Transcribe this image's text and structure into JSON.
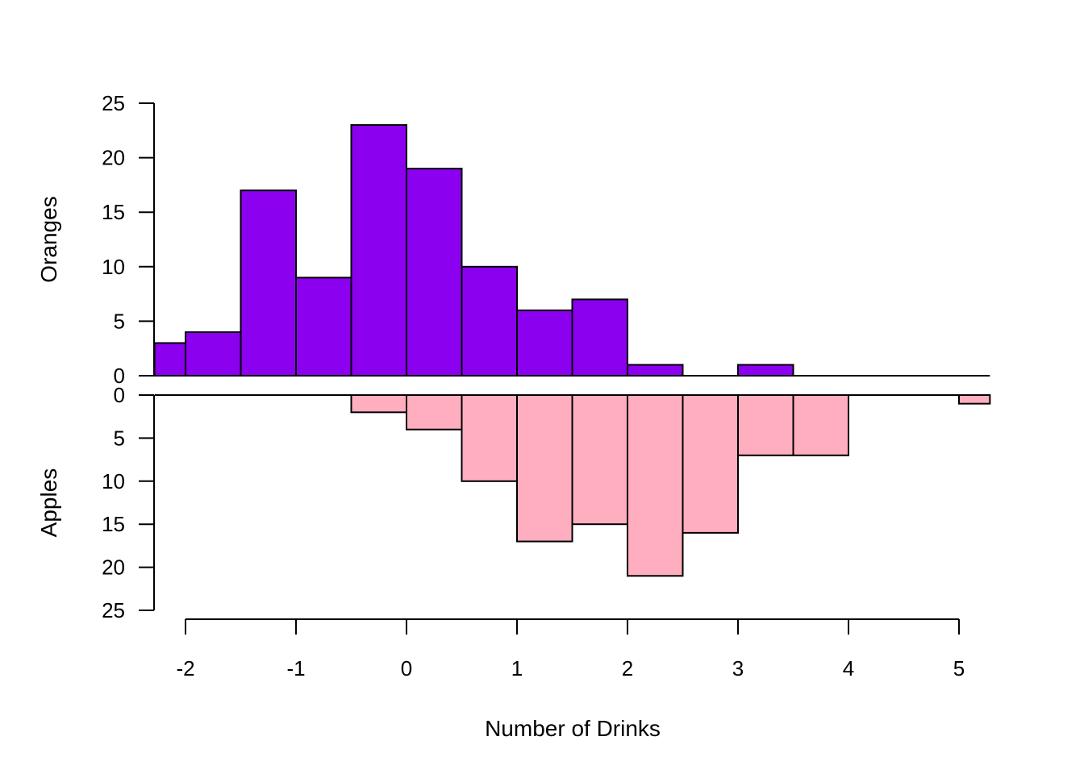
{
  "chart_data": {
    "type": "bar",
    "subtype": "back-to-back histogram",
    "xlabel": "Number of Drinks",
    "x_ticks": [
      -2,
      -1,
      0,
      1,
      2,
      3,
      4,
      5
    ],
    "xlim": [
      -2.28,
      5.28
    ],
    "bin_width": 0.5,
    "series": [
      {
        "name": "Oranges",
        "panel": "top",
        "ylabel": "Oranges",
        "color": "#8B00EE",
        "ylim": [
          0,
          25
        ],
        "y_ticks": [
          0,
          5,
          10,
          15,
          20,
          25
        ],
        "bins": [
          {
            "x0": -2.28,
            "x1": -2.0,
            "count": 3
          },
          {
            "x0": -2.0,
            "x1": -1.5,
            "count": 4
          },
          {
            "x0": -1.5,
            "x1": -1.0,
            "count": 17
          },
          {
            "x0": -1.0,
            "x1": -0.5,
            "count": 9
          },
          {
            "x0": -0.5,
            "x1": 0.0,
            "count": 23
          },
          {
            "x0": 0.0,
            "x1": 0.5,
            "count": 19
          },
          {
            "x0": 0.5,
            "x1": 1.0,
            "count": 10
          },
          {
            "x0": 1.0,
            "x1": 1.5,
            "count": 6
          },
          {
            "x0": 1.5,
            "x1": 2.0,
            "count": 7
          },
          {
            "x0": 2.0,
            "x1": 2.5,
            "count": 1
          },
          {
            "x0": 2.5,
            "x1": 3.0,
            "count": 0
          },
          {
            "x0": 3.0,
            "x1": 3.5,
            "count": 1
          }
        ]
      },
      {
        "name": "Apples",
        "panel": "bottom",
        "ylabel": "Apples",
        "color": "#FFAEBF",
        "ylim": [
          0,
          25
        ],
        "y_ticks": [
          0,
          5,
          10,
          15,
          20,
          25
        ],
        "bins": [
          {
            "x0": -0.5,
            "x1": 0.0,
            "count": 2
          },
          {
            "x0": 0.0,
            "x1": 0.5,
            "count": 4
          },
          {
            "x0": 0.5,
            "x1": 1.0,
            "count": 10
          },
          {
            "x0": 1.0,
            "x1": 1.5,
            "count": 17
          },
          {
            "x0": 1.5,
            "x1": 2.0,
            "count": 15
          },
          {
            "x0": 2.0,
            "x1": 2.5,
            "count": 21
          },
          {
            "x0": 2.5,
            "x1": 3.0,
            "count": 16
          },
          {
            "x0": 3.0,
            "x1": 3.5,
            "count": 7
          },
          {
            "x0": 3.5,
            "x1": 4.0,
            "count": 7
          },
          {
            "x0": 4.0,
            "x1": 4.5,
            "count": 0
          },
          {
            "x0": 4.5,
            "x1": 5.0,
            "count": 0
          },
          {
            "x0": 5.0,
            "x1": 5.28,
            "count": 1
          }
        ]
      }
    ]
  }
}
